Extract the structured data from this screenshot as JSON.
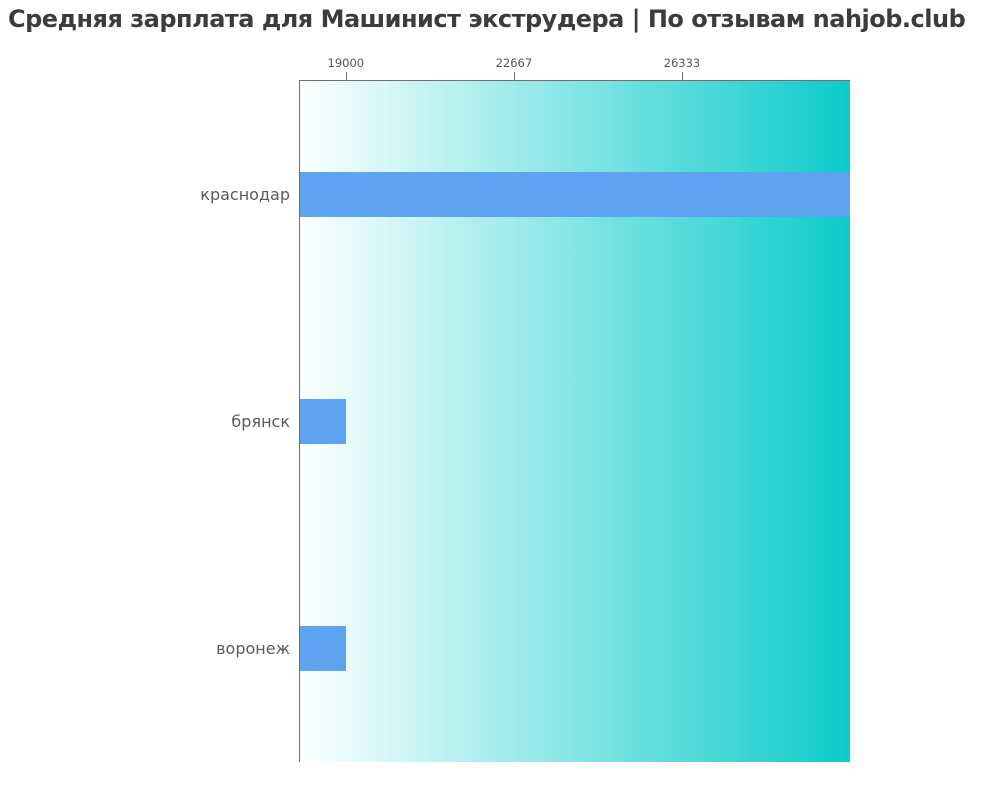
{
  "title": "Средняя зарплата для Машинист экструдера | По отзывам nahjob.club",
  "colors": {
    "bar": "#5da3ef",
    "gradient_start": "#fdffff",
    "gradient_end": "#0dcbcb",
    "axis": "#6f6f6f",
    "tick_label": "#565656",
    "category_label": "#5a5a5a",
    "title": "#3c3c3c"
  },
  "chart_data": {
    "type": "bar",
    "orientation": "horizontal",
    "title": "Средняя зарплата для Машинист экструдера | По отзывам nahjob.club",
    "categories": [
      "краснодар",
      "брянск",
      "воронеж"
    ],
    "values": [
      30000,
      19000,
      19000
    ],
    "xlabel": "",
    "ylabel": "",
    "xlim": [
      18000,
      30000
    ],
    "xticks": [
      19000,
      22667,
      26333
    ],
    "xtick_labels": [
      "19000",
      "22667",
      "26333"
    ],
    "xaxis_position": "top",
    "grid": false,
    "legend": false,
    "plot_background": "horizontal gradient white to teal"
  }
}
